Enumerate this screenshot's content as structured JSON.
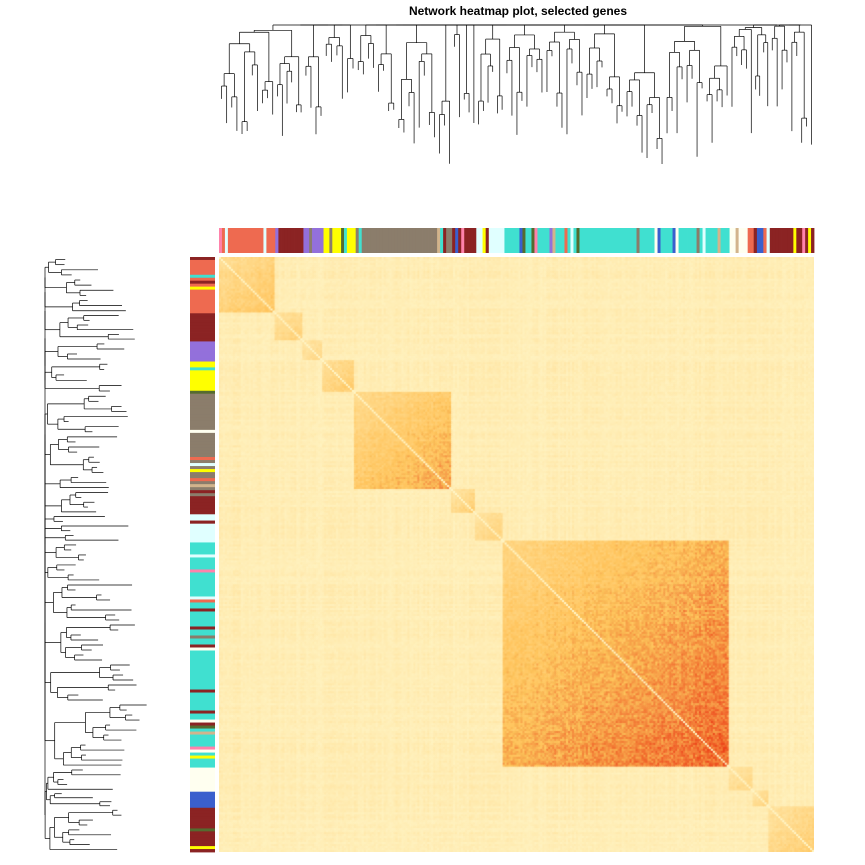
{
  "title": "Network heatmap plot, selected genes",
  "chart_data": {
    "type": "heatmap",
    "title": "Network heatmap plot, selected genes",
    "matrix": "symmetric gene-gene topological overlap matrix",
    "diagonal_direction": "top-left to bottom-right",
    "color_scale": {
      "low": "#fff6c8",
      "mid": "#fbc35a",
      "high": "#e81c05"
    },
    "row_dendrogram": "left",
    "column_dendrogram": "top",
    "module_color_bars": [
      "top",
      "left"
    ],
    "module_colors": {
      "brown": "#8b2323",
      "salmon": "#ee6a50",
      "yellow": "#ffff00",
      "grey60": "#8b7d6b",
      "turquoise": "#40e0d0",
      "blue": "#3a5fcd",
      "purple": "#9370db",
      "ivory": "#fffff0",
      "lightcyan": "#e0ffff",
      "tan": "#d2b48c",
      "darkgreen": "#556b2f",
      "pink": "#ff82ab"
    },
    "modules": [
      {
        "color": "salmon",
        "size": 70,
        "strength": 0.45
      },
      {
        "color": "brown",
        "size": 35,
        "strength": 0.35
      },
      {
        "color": "purple",
        "size": 25,
        "strength": 0.3
      },
      {
        "color": "yellow",
        "size": 40,
        "strength": 0.4
      },
      {
        "color": "grey60",
        "size": 120,
        "strength": 0.62
      },
      {
        "color": "brown",
        "size": 30,
        "strength": 0.35
      },
      {
        "color": "lightcyan",
        "size": 35,
        "strength": 0.3
      },
      {
        "color": "turquoise",
        "size": 280,
        "strength": 0.82
      },
      {
        "color": "ivory",
        "size": 30,
        "strength": 0.25
      },
      {
        "color": "blue",
        "size": 20,
        "strength": 0.3
      },
      {
        "color": "brown",
        "size": 55,
        "strength": 0.38
      }
    ]
  }
}
